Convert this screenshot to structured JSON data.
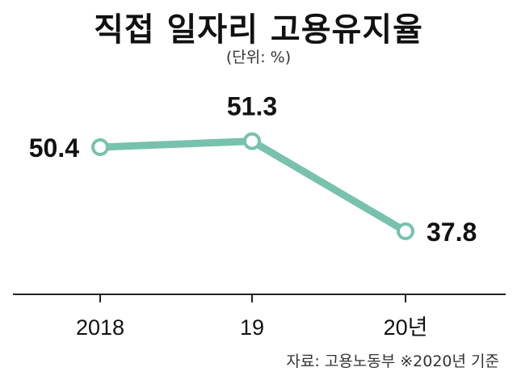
{
  "chart_data": {
    "type": "line",
    "title": "직접 일자리 고용유지율",
    "unit_note": "(단위: %)",
    "source_note": "자료: 고용노동부 ※2020년 기준",
    "categories": [
      "2018",
      "19",
      "20년"
    ],
    "values": [
      50.4,
      51.3,
      37.8
    ],
    "value_labels": [
      "50.4",
      "51.3",
      "37.8"
    ],
    "line_color": "#78c1ad",
    "marker_fill": "#ffffff",
    "grid": false,
    "legend": "none"
  }
}
